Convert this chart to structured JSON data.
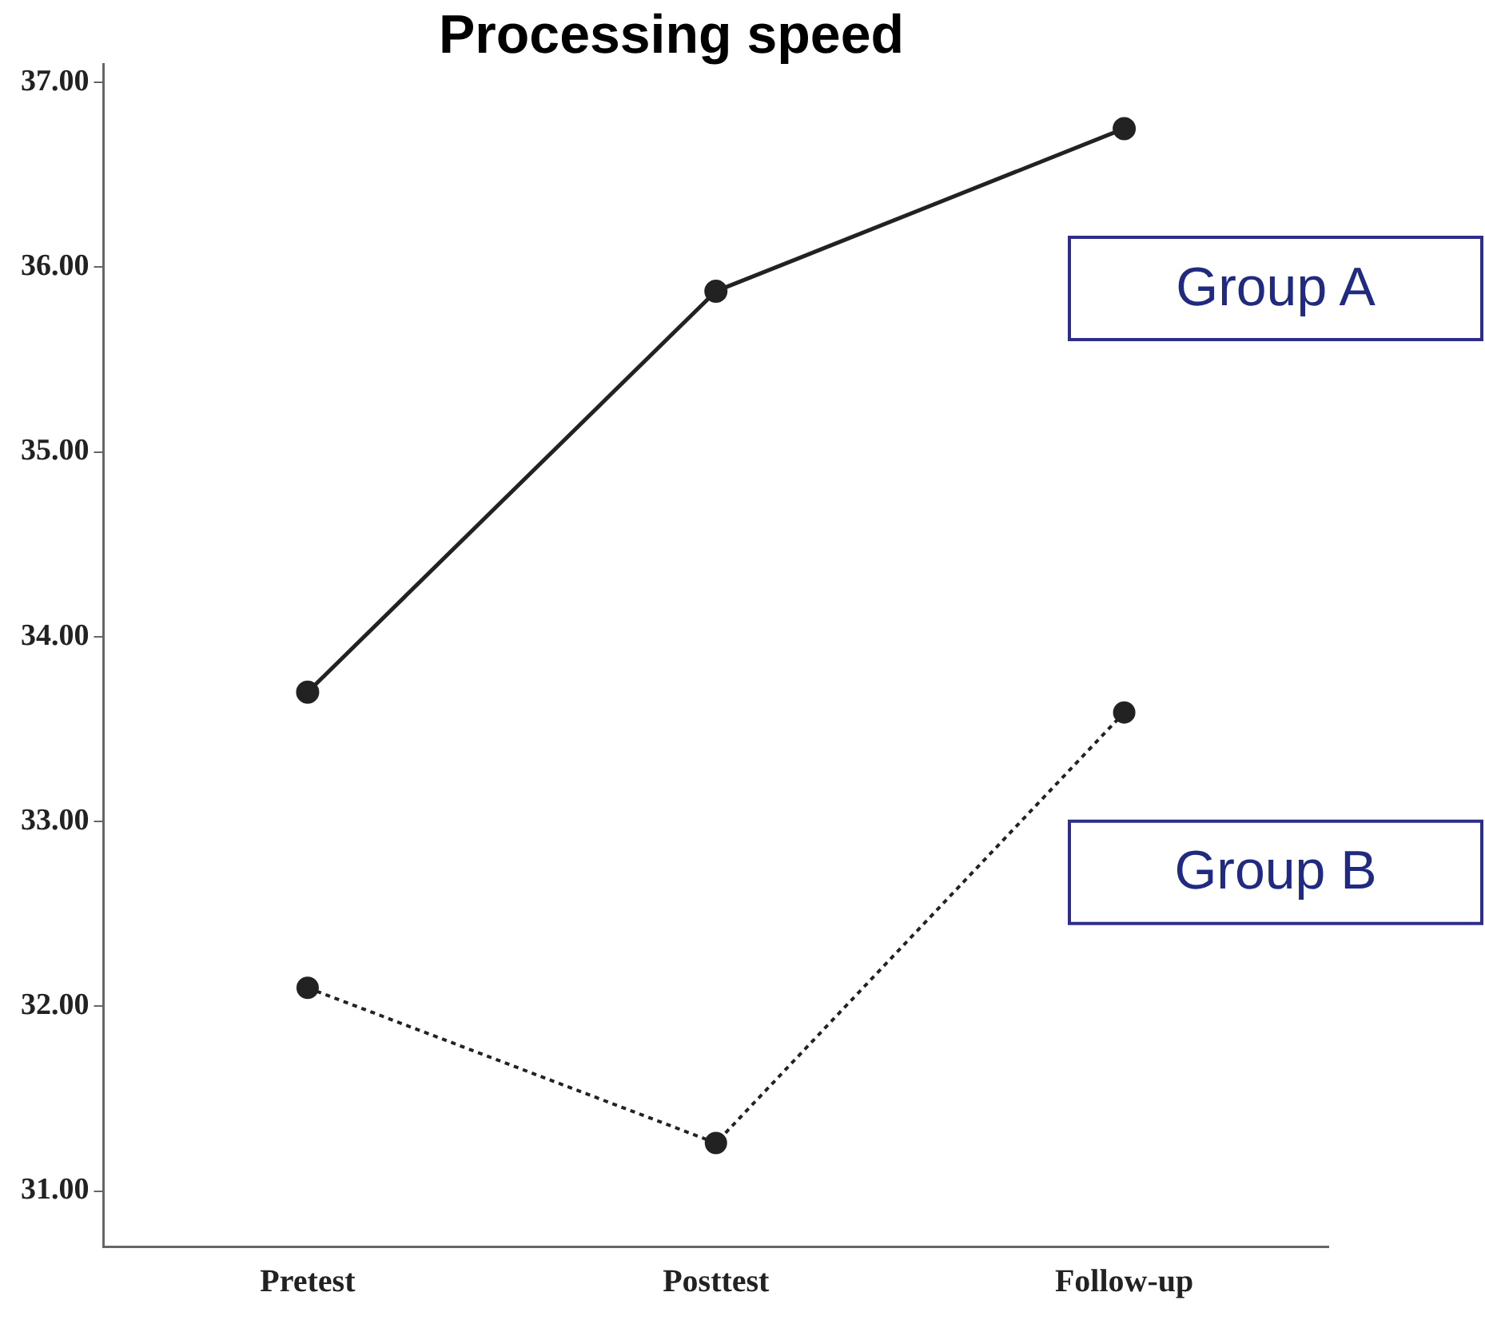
{
  "chart_data": {
    "type": "line",
    "title": "Processing speed",
    "categories": [
      "Pretest",
      "Posttest",
      "Follow-up"
    ],
    "series": [
      {
        "name": "Group A",
        "color": "#222222",
        "values": [
          33.7,
          35.87,
          36.75
        ],
        "line_style": "solid"
      },
      {
        "name": "Group B",
        "color": "#222222",
        "values": [
          32.1,
          31.26,
          33.59
        ],
        "line_style": "dotted"
      }
    ],
    "ylim": [
      30.7,
      37.1
    ],
    "yticks": [
      {
        "value": 31,
        "label": "31.00"
      },
      {
        "value": 32,
        "label": "32.00"
      },
      {
        "value": 33,
        "label": "33.00"
      },
      {
        "value": 34,
        "label": "34.00"
      },
      {
        "value": 35,
        "label": "35.00"
      },
      {
        "value": 36,
        "label": "36.00"
      },
      {
        "value": 37,
        "label": "37.00"
      }
    ],
    "grid": false,
    "marker": "circle",
    "legend": false
  }
}
